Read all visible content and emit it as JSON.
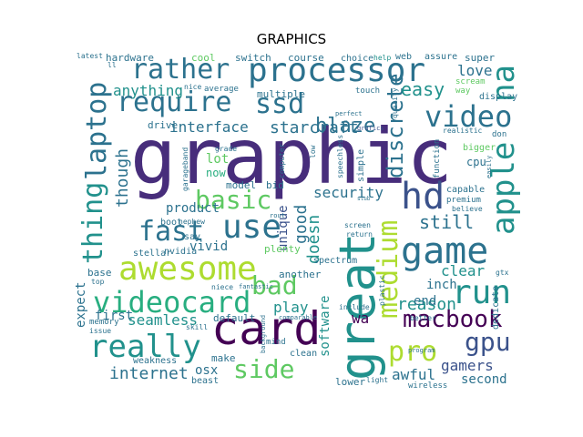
{
  "title": "GRAPHICS",
  "words": {
    "graphic": "graphic",
    "great": "great",
    "card": "card",
    "processor": "processor",
    "awesome": "awesome",
    "videocard": "videocard",
    "game": "game",
    "really": "really",
    "rather": "rather",
    "require": "require",
    "ssd": "ssd",
    "video": "video",
    "hd": "hd",
    "apple": "apple",
    "na": "na",
    "laptop": "laptop",
    "thing": "thing",
    "fast": "fast",
    "use": "use",
    "basic": "basic",
    "run": "run",
    "medium": "medium",
    "macbook": "macbook",
    "gpu": "gpu",
    "pro": "pro",
    "side": "side",
    "bad": "bad",
    "blaze": "blaze",
    "discrete": "discrete",
    "easy": "easy",
    "love": "love",
    "good": "good",
    "though": "though",
    "anything": "anything",
    "interface": "interface",
    "starcraft": "starcraft",
    "security": "security",
    "unique": "unique",
    "doesn": "doesn",
    "still": "still",
    "reason": "reason",
    "clear": "clear",
    "inch": "inch",
    "end": "end",
    "gamers": "gamers",
    "second": "second",
    "awful": "awful",
    "internet": "internet",
    "seamless": "seamless",
    "play": "play",
    "software": "software",
    "wa": "wa",
    "osx": "osx",
    "product": "product",
    "vivid": "vivid",
    "expect": "expect",
    "first": "first",
    "lot": "lot",
    "now": "now",
    "cpu": "cpu",
    "hardware": "hardware",
    "cool": "cool",
    "switch": "switch",
    "course": "course",
    "choice": "choice",
    "help": "help",
    "web": "web",
    "assure": "assure",
    "super": "super",
    "latest": "latest",
    "ll": "ll",
    "nice": "nice",
    "average": "average",
    "multiple": "multiple",
    "touch": "touch",
    "scream": "scream",
    "way": "way",
    "display": "display",
    "drive": "drive",
    "perfect": "perfect",
    "grafics": "grafics",
    "quality": "quality",
    "realistic": "realistic",
    "don": "don",
    "bigger": "bigger",
    "easily": "easily",
    "garageband": "garageband",
    "grade": "grade",
    "computer": "computer",
    "low": "low",
    "speechless": "speechless",
    "simple": "simple",
    "stub": "stub",
    "function": "function",
    "capable": "capable",
    "premium": "premium",
    "believe": "believe",
    "model": "model",
    "bid": "bid",
    "boot": "boot",
    "nephew": "nephew",
    "rout": "rout",
    "stellar": "stellar",
    "nvidia": "nvidia",
    "plenty": "plenty",
    "spectrum": "spectrum",
    "screen": "screen",
    "return": "return",
    "gtx": "gtx",
    "dedicate": "dedicate",
    "base": "base",
    "top": "top",
    "niece": "niece",
    "fantastic": "fantastic",
    "another": "another",
    "plastic": "plastic",
    "include": "include",
    "better": "better",
    "memory": "memory",
    "issue": "issue",
    "default": "default",
    "background": "background",
    "comparable": "comparable",
    "mind": "mind",
    "make": "make",
    "weakness": "weakness",
    "beast": "beast",
    "clean": "clean",
    "lower": "lower",
    "light": "light",
    "wireless": "wireless",
    "program": "program",
    "say": "say",
    "skill": "skill"
  },
  "colors": {
    "dark_purple": "#440154",
    "indigo": "#472d7b",
    "slate_blue": "#3b528b",
    "blue": "#2c728e",
    "teal": "#21918c",
    "green_teal": "#28ae80",
    "green": "#5ec962",
    "lime": "#addc30",
    "yellow": "#fde725"
  }
}
